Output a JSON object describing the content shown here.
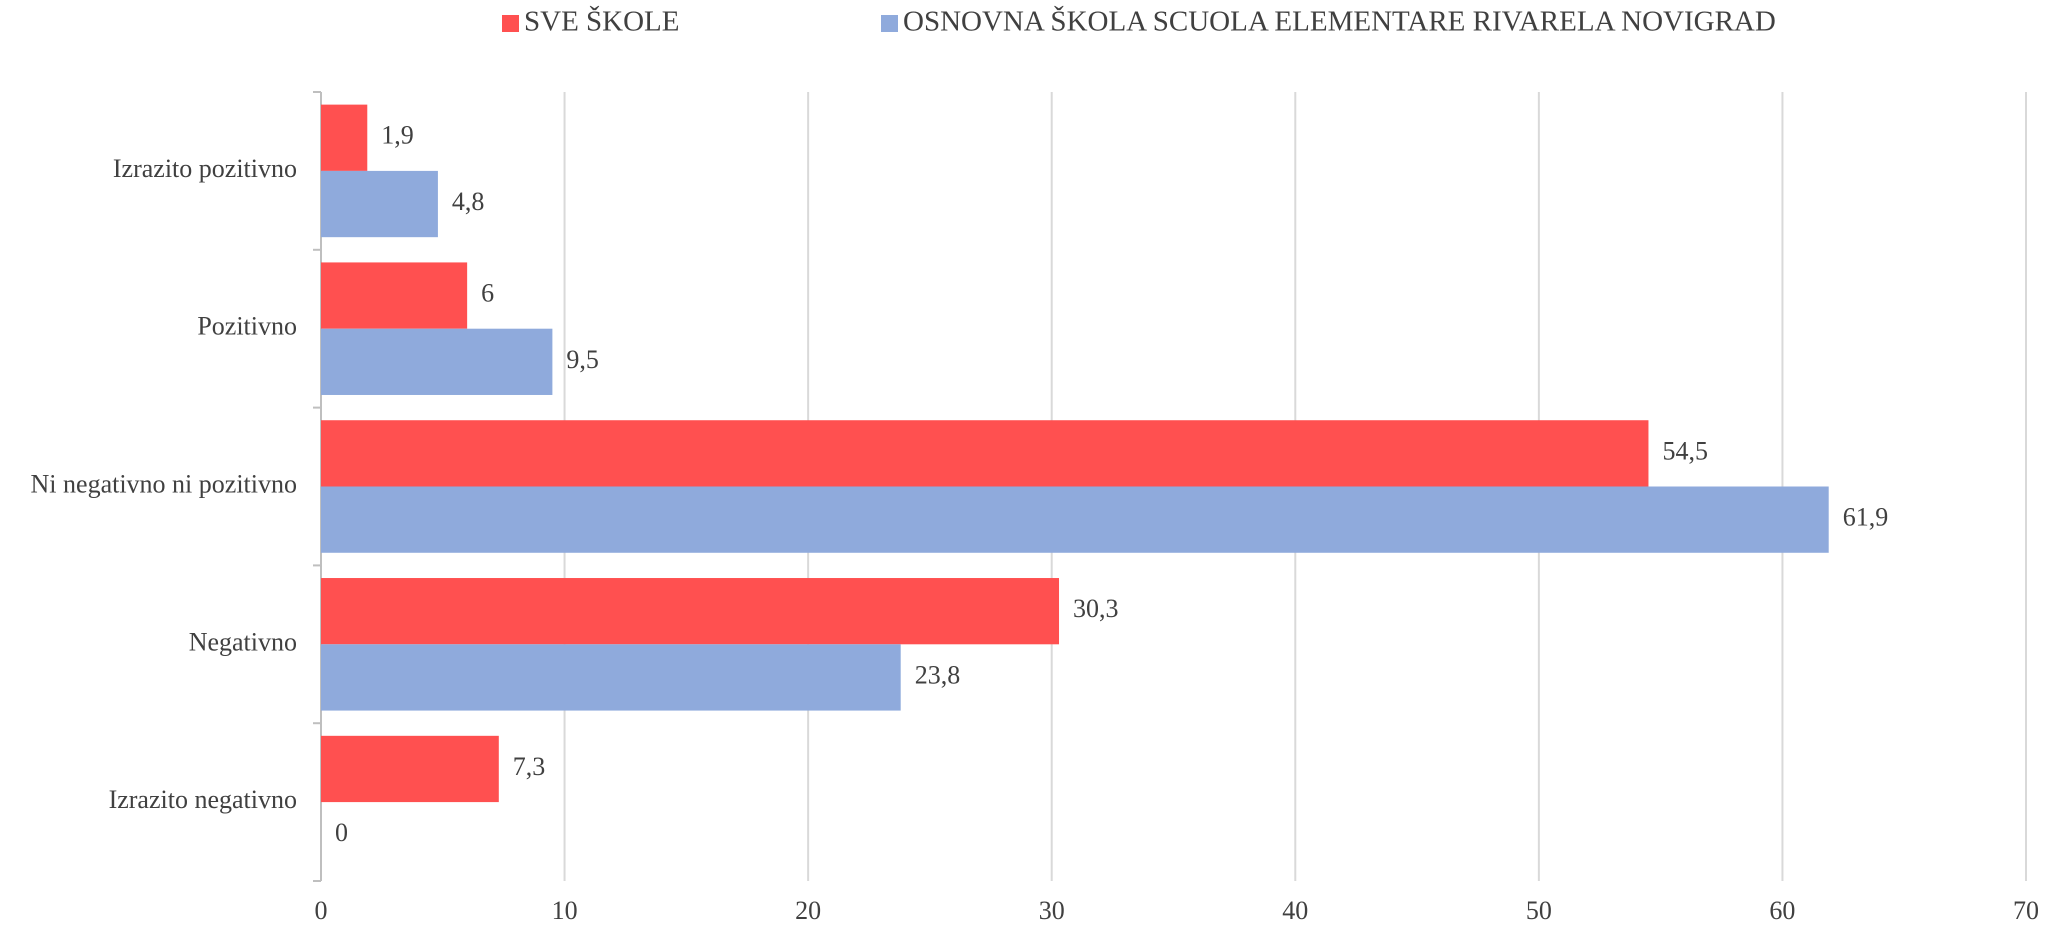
{
  "chart_data": {
    "type": "barh",
    "categories": [
      "Izrazito pozitivno",
      "Pozitivno",
      "Ni negativno ni pozitivno",
      "Negativno",
      "Izrazito negativno"
    ],
    "series": [
      {
        "name": "SVE ŠKOLE",
        "color": "#ff5050",
        "values": [
          1.9,
          6,
          54.5,
          30.3,
          7.3
        ],
        "value_labels": [
          "1,9",
          "6",
          "54,5",
          "30,3",
          "7,3"
        ]
      },
      {
        "name": "OSNOVNA ŠKOLA SCUOLA ELEMENTARE RIVARELA NOVIGRAD",
        "color": "#8faadc",
        "values": [
          4.8,
          9.5,
          61.9,
          23.8,
          0
        ],
        "value_labels": [
          "4,8",
          "9,5",
          "61,9",
          "23,8",
          "0"
        ]
      }
    ],
    "xlim": [
      0,
      70
    ],
    "xticks": [
      0,
      10,
      20,
      30,
      40,
      50,
      60,
      70
    ],
    "grid": true,
    "legend": "top"
  }
}
